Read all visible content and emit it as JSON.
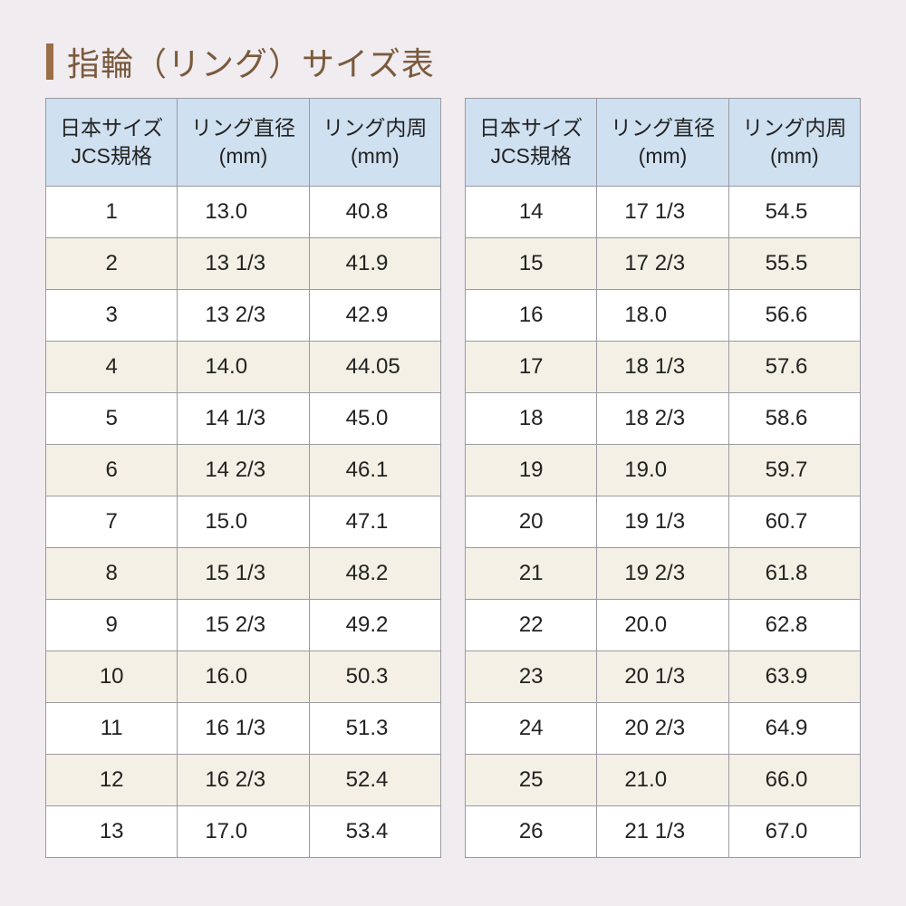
{
  "header": {
    "title": "指輪（リング）サイズ表"
  },
  "tables": [
    {
      "headers": [
        [
          "日本サイズ",
          "JCS規格"
        ],
        [
          "リング直径",
          "(mm)"
        ],
        [
          "リング内周",
          "(mm)"
        ]
      ],
      "rows": [
        [
          "1",
          "13.0",
          "40.8"
        ],
        [
          "2",
          "13 1/3",
          "41.9"
        ],
        [
          "3",
          "13 2/3",
          "42.9"
        ],
        [
          "4",
          "14.0",
          "44.05"
        ],
        [
          "5",
          "14 1/3",
          "45.0"
        ],
        [
          "6",
          "14 2/3",
          "46.1"
        ],
        [
          "7",
          "15.0",
          "47.1"
        ],
        [
          "8",
          "15 1/3",
          "48.2"
        ],
        [
          "9",
          "15 2/3",
          "49.2"
        ],
        [
          "10",
          "16.0",
          "50.3"
        ],
        [
          "11",
          "16 1/3",
          "51.3"
        ],
        [
          "12",
          "16 2/3",
          "52.4"
        ],
        [
          "13",
          "17.0",
          "53.4"
        ]
      ]
    },
    {
      "headers": [
        [
          "日本サイズ",
          "JCS規格"
        ],
        [
          "リング直径",
          "(mm)"
        ],
        [
          "リング内周",
          "(mm)"
        ]
      ],
      "rows": [
        [
          "14",
          "17 1/3",
          "54.5"
        ],
        [
          "15",
          "17 2/3",
          "55.5"
        ],
        [
          "16",
          "18.0",
          "56.6"
        ],
        [
          "17",
          "18 1/3",
          "57.6"
        ],
        [
          "18",
          "18 2/3",
          "58.6"
        ],
        [
          "19",
          "19.0",
          "59.7"
        ],
        [
          "20",
          "19 1/3",
          "60.7"
        ],
        [
          "21",
          "19 2/3",
          "61.8"
        ],
        [
          "22",
          "20.0",
          "62.8"
        ],
        [
          "23",
          "20 1/3",
          "63.9"
        ],
        [
          "24",
          "20 2/3",
          "64.9"
        ],
        [
          "25",
          "21.0",
          "66.0"
        ],
        [
          "26",
          "21 1/3",
          "67.0"
        ]
      ]
    }
  ]
}
